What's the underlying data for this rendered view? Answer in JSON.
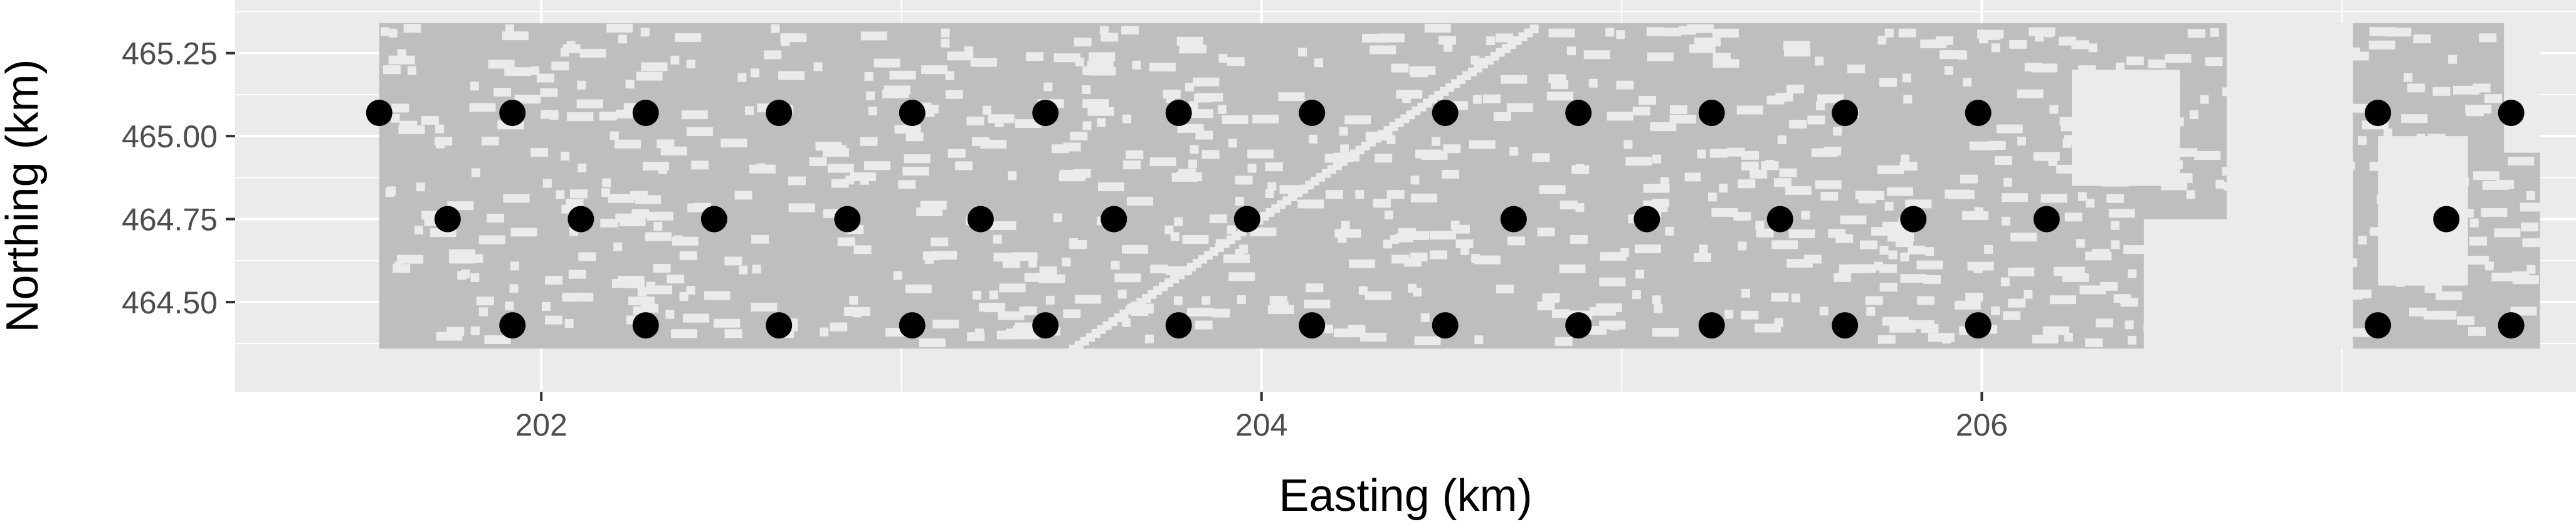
{
  "chart_data": {
    "type": "scatter",
    "title": "",
    "xlabel": "Easting (km)",
    "ylabel": "Northing (km)",
    "xlim": [
      201.15,
      207.65
    ],
    "ylim": [
      464.23,
      465.41
    ],
    "x_ticks": [
      202,
      204,
      206
    ],
    "y_ticks": [
      464.5,
      464.75,
      465.0,
      465.25
    ],
    "x_tick_labels": [
      "202",
      "204",
      "206"
    ],
    "y_tick_labels": [
      "464.50",
      "464.75",
      "465.00",
      "465.25"
    ],
    "grid": true,
    "legend": "none",
    "raster": {
      "extent": {
        "x": [
          201.55,
          207.55
        ],
        "y": [
          464.36,
          465.34
        ]
      },
      "present_color": "#bebebe",
      "absent_color": "#ebebeb"
    },
    "series": [
      {
        "points": [
          [
            201.55,
            465.07
          ],
          [
            201.92,
            465.07
          ],
          [
            202.29,
            465.07
          ],
          [
            202.66,
            465.07
          ],
          [
            203.03,
            465.07
          ],
          [
            203.4,
            465.07
          ],
          [
            203.77,
            465.07
          ],
          [
            204.14,
            465.07
          ],
          [
            204.51,
            465.07
          ],
          [
            204.88,
            465.07
          ],
          [
            205.25,
            465.07
          ],
          [
            205.62,
            465.07
          ],
          [
            205.99,
            465.07
          ],
          [
            207.1,
            465.07
          ],
          [
            207.47,
            465.07
          ],
          [
            201.74,
            464.75
          ],
          [
            202.11,
            464.75
          ],
          [
            202.48,
            464.75
          ],
          [
            202.85,
            464.75
          ],
          [
            203.22,
            464.75
          ],
          [
            203.59,
            464.75
          ],
          [
            203.96,
            464.75
          ],
          [
            204.7,
            464.75
          ],
          [
            205.07,
            464.75
          ],
          [
            205.44,
            464.75
          ],
          [
            205.81,
            464.75
          ],
          [
            206.18,
            464.75
          ],
          [
            207.29,
            464.75
          ],
          [
            201.92,
            464.43
          ],
          [
            202.29,
            464.43
          ],
          [
            202.66,
            464.43
          ],
          [
            203.03,
            464.43
          ],
          [
            203.4,
            464.43
          ],
          [
            203.77,
            464.43
          ],
          [
            204.14,
            464.43
          ],
          [
            204.51,
            464.43
          ],
          [
            204.88,
            464.43
          ],
          [
            205.25,
            464.43
          ],
          [
            205.62,
            464.43
          ],
          [
            205.99,
            464.43
          ],
          [
            207.1,
            464.43
          ],
          [
            207.47,
            464.43
          ]
        ],
        "color": "#000000"
      }
    ]
  }
}
